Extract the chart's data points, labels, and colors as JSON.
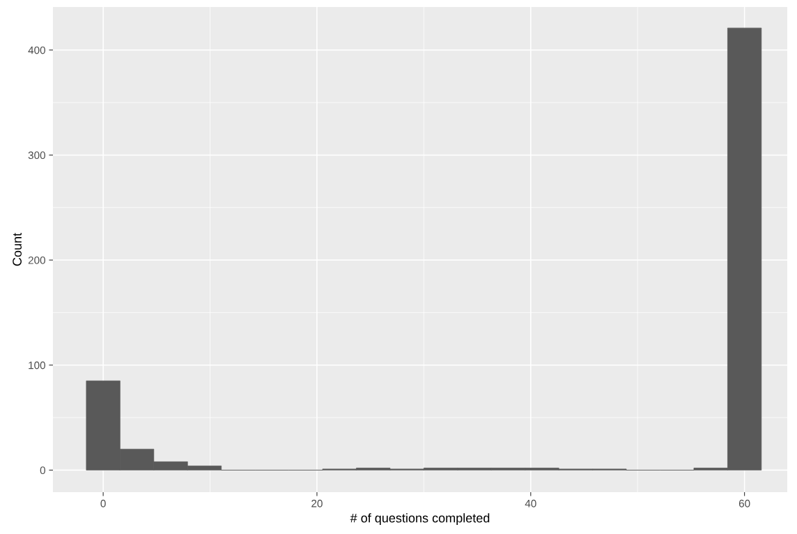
{
  "chart_data": {
    "type": "histogram",
    "xlabel": "# of questions completed",
    "ylabel": "Count",
    "bins": [
      -1.579,
      1.579,
      4.737,
      7.895,
      11.053,
      14.211,
      17.368,
      20.526,
      23.684,
      26.842,
      30.0,
      33.158,
      36.316,
      39.474,
      42.632,
      45.789,
      48.947,
      52.105,
      55.263,
      58.421,
      61.579
    ],
    "values": [
      85,
      20,
      8,
      4,
      0,
      0,
      0,
      1,
      2,
      1,
      2,
      2,
      2,
      2,
      1,
      1,
      0,
      0,
      2,
      421
    ],
    "color": "#595959",
    "xlim": [
      -4.7,
      64
    ],
    "ylim": [
      -21,
      441
    ],
    "xticks": [
      0,
      20,
      40,
      60
    ],
    "yticks": [
      0,
      100,
      200,
      300,
      400
    ],
    "grid": true
  }
}
